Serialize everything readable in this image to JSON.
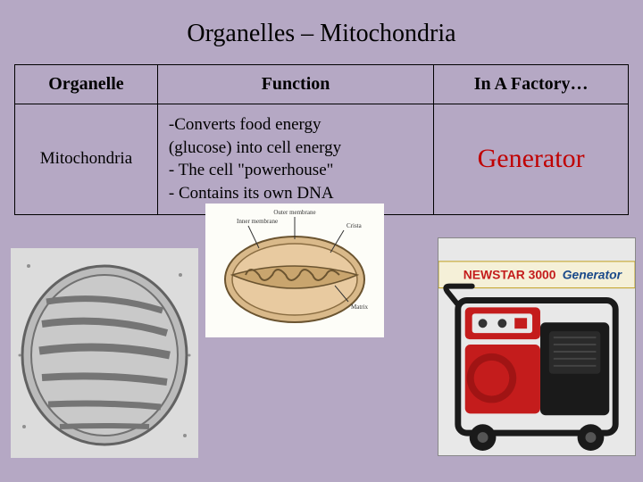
{
  "title": "Organelles – Mitochondria",
  "table": {
    "headers": {
      "organelle": "Organelle",
      "function": "Function",
      "factory": "In A Factory…"
    },
    "row": {
      "organelle": "Mitochondria",
      "function_lines": [
        "-Converts food energy",
        "(glucose) into cell energy",
        "- The cell \"powerhouse\"",
        "- Contains its own DNA"
      ],
      "factory": "Generator"
    }
  },
  "colors": {
    "background": "#b5a8c4",
    "text": "#000000",
    "accent_red": "#c00000",
    "generator_red": "#c41c1c",
    "generator_black": "#1a1a1a",
    "generator_label_bg": "#f5f5f0",
    "mito_outer": "#d9b98a",
    "mito_inner": "#e8caa0",
    "mito_cristae": "#a8865a"
  },
  "diagram": {
    "labels": {
      "outer": "Outer membrane",
      "inner": "Inner membrane",
      "crista": "Crista",
      "matrix": "Matrix"
    }
  },
  "generator": {
    "brand": "NEWSTAR 3000",
    "word": "Generator"
  }
}
